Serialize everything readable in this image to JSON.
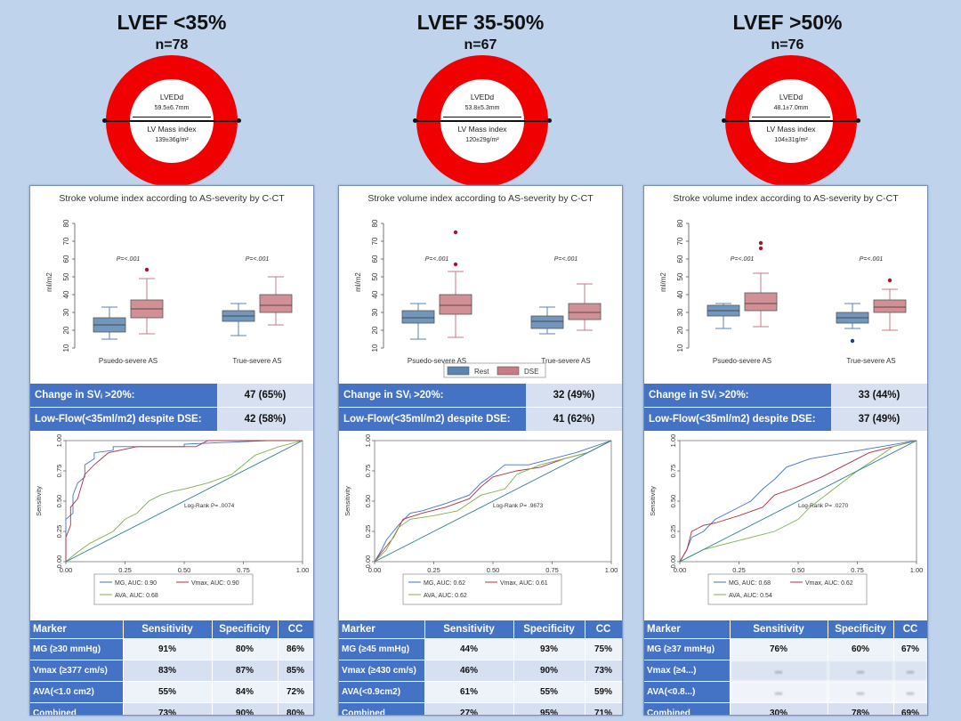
{
  "groups": [
    {
      "title": "LVEF <35%",
      "n": "n=78",
      "lvedd_label": "LVEDd",
      "lvedd_value": "59.5±6.7mm",
      "lvmass_label": "LV Mass index",
      "lvmass_value": "139±36g/m²",
      "summary": [
        {
          "label": "Change in SVᵢ >20%:",
          "value": "47 (65%)"
        },
        {
          "label": "Low-Flow(<35ml/m2) despite DSE:",
          "value": "42 (58%)"
        }
      ],
      "table": {
        "headers": [
          "Marker",
          "Sensitivity",
          "Specificity",
          "CC"
        ],
        "rows": [
          [
            "MG (≥30 mmHg)",
            "91%",
            "80%",
            "86%"
          ],
          [
            "Vmax (≥377 cm/s)",
            "83%",
            "87%",
            "85%"
          ],
          [
            "AVA(<1.0 cm2)",
            "55%",
            "84%",
            "72%"
          ],
          [
            "Combined",
            "73%",
            "90%",
            "80%"
          ]
        ]
      }
    },
    {
      "title": "LVEF 35-50%",
      "n": "n=67",
      "lvedd_label": "LVEDd",
      "lvedd_value": "53.8±5.3mm",
      "lvmass_label": "LV Mass index",
      "lvmass_value": "120±29g/m²",
      "summary": [
        {
          "label": "Change in SVᵢ >20%:",
          "value": "32 (49%)"
        },
        {
          "label": "Low-Flow(<35ml/m2) despite DSE:",
          "value": "41 (62%)"
        }
      ],
      "table": {
        "headers": [
          "Marker",
          "Sensitivity",
          "Specificity",
          "CC"
        ],
        "rows": [
          [
            "MG (≥45 mmHg)",
            "44%",
            "93%",
            "75%"
          ],
          [
            "Vmax (≥430 cm/s)",
            "46%",
            "90%",
            "73%"
          ],
          [
            "AVA(<0.9cm2)",
            "61%",
            "55%",
            "59%"
          ],
          [
            "Combined",
            "27%",
            "95%",
            "71%"
          ]
        ]
      }
    },
    {
      "title": "LVEF >50%",
      "n": "n=76",
      "lvedd_label": "LVEDd",
      "lvedd_value": "48.1±7.0mm",
      "lvmass_label": "LV Mass index",
      "lvmass_value": "104±31g/m²",
      "summary": [
        {
          "label": "Change in SVᵢ >20%:",
          "value": "33 (44%)"
        },
        {
          "label": "Low-Flow(<35ml/m2) despite DSE:",
          "value": "37 (49%)"
        }
      ],
      "table": {
        "headers": [
          "Marker",
          "Sensitivity",
          "Specificity",
          "CC"
        ],
        "rows": [
          [
            "MG (≥37 mmHg)",
            "76%",
            "60%",
            "67%"
          ],
          [
            "Vmax (≥4...)",
            "...",
            "...",
            "..."
          ],
          [
            "AVA(<0.8...)",
            "...",
            "...",
            "..."
          ],
          [
            "Combined",
            "30%",
            "78%",
            "69%"
          ]
        ]
      }
    }
  ],
  "colors": {
    "rest": "#5b84b1",
    "dse": "#c97b84",
    "ring": "#f00000",
    "header_blue": "#4472c4"
  },
  "chart_data": [
    {
      "type": "box",
      "title": "Stroke volume index according to AS-severity by C-CT",
      "ylabel": "ml/m2",
      "ylim": [
        10,
        85
      ],
      "yticks": [
        10,
        20,
        30,
        40,
        50,
        60,
        70,
        80
      ],
      "categories": [
        "Psuedo-severe AS",
        "True-severe AS"
      ],
      "pvalues": [
        "P=<.001",
        "P=<.001"
      ],
      "legend": [],
      "series": [
        {
          "name": "Rest",
          "boxes": [
            {
              "min": 15,
              "q1": 19,
              "median": 23,
              "q3": 27,
              "max": 33,
              "outliers": []
            },
            {
              "min": 17,
              "q1": 25,
              "median": 28,
              "q3": 31,
              "max": 35,
              "outliers": []
            }
          ]
        },
        {
          "name": "DSE",
          "boxes": [
            {
              "min": 18,
              "q1": 27,
              "median": 32,
              "q3": 37,
              "max": 49,
              "outliers": [
                54
              ]
            },
            {
              "min": 23,
              "q1": 30,
              "median": 34,
              "q3": 40,
              "max": 50,
              "outliers": []
            }
          ]
        }
      ]
    },
    {
      "type": "box",
      "title": "Stroke volume index according to AS-severity by C-CT",
      "ylabel": "ml/m2",
      "ylim": [
        10,
        85
      ],
      "yticks": [
        10,
        20,
        30,
        40,
        50,
        60,
        70,
        80
      ],
      "categories": [
        "Psuedo-severe AS",
        "True-severe AS"
      ],
      "pvalues": [
        "P=<.001",
        "P=<.001"
      ],
      "legend": [
        "Rest",
        "DSE"
      ],
      "series": [
        {
          "name": "Rest",
          "boxes": [
            {
              "min": 15,
              "q1": 24,
              "median": 27,
              "q3": 31,
              "max": 35,
              "outliers": []
            },
            {
              "min": 18,
              "q1": 21,
              "median": 25,
              "q3": 28,
              "max": 33,
              "outliers": []
            }
          ]
        },
        {
          "name": "DSE",
          "boxes": [
            {
              "min": 16,
              "q1": 29,
              "median": 34,
              "q3": 40,
              "max": 53,
              "outliers": [
                57,
                75
              ]
            },
            {
              "min": 20,
              "q1": 26,
              "median": 30,
              "q3": 35,
              "max": 46,
              "outliers": []
            }
          ]
        }
      ]
    },
    {
      "type": "box",
      "title": "Stroke volume index according to AS-severity by C-CT",
      "ylabel": "ml/m2",
      "ylim": [
        10,
        85
      ],
      "yticks": [
        10,
        20,
        30,
        40,
        50,
        60,
        70,
        80
      ],
      "categories": [
        "Psuedo-severe AS",
        "True-severe AS"
      ],
      "pvalues": [
        "P=<.001",
        "P=<.001"
      ],
      "legend": [],
      "series": [
        {
          "name": "Rest",
          "boxes": [
            {
              "min": 21,
              "q1": 28,
              "median": 31,
              "q3": 34,
              "max": 35,
              "outliers": []
            },
            {
              "min": 21,
              "q1": 24,
              "median": 27,
              "q3": 30,
              "max": 35,
              "outliers": [
                14
              ]
            }
          ]
        },
        {
          "name": "DSE",
          "boxes": [
            {
              "min": 22,
              "q1": 31,
              "median": 35,
              "q3": 41,
              "max": 52,
              "outliers": [
                66,
                69
              ]
            },
            {
              "min": 20,
              "q1": 30,
              "median": 33,
              "q3": 37,
              "max": 43,
              "outliers": [
                48
              ]
            }
          ]
        }
      ]
    },
    {
      "type": "line",
      "xlabel": "1-specificity",
      "ylabel": "Sensitivity",
      "xlim": [
        0,
        1
      ],
      "ylim": [
        0,
        1
      ],
      "ticks": [
        "0.00",
        "0.25",
        "0.50",
        "0.75",
        "1.00"
      ],
      "annotation": "Log-Rank P= .0074",
      "legend": [
        "MG, AUC: 0.90",
        "Vmax, AUC: 0.90",
        "AVA, AUC: 0.68"
      ],
      "series": [
        {
          "name": "MG",
          "color": "#4472c4",
          "points": [
            [
              0,
              0
            ],
            [
              0,
              0.35
            ],
            [
              0.03,
              0.4
            ],
            [
              0.03,
              0.55
            ],
            [
              0.05,
              0.65
            ],
            [
              0.08,
              0.7
            ],
            [
              0.08,
              0.8
            ],
            [
              0.12,
              0.85
            ],
            [
              0.12,
              0.9
            ],
            [
              0.2,
              0.92
            ],
            [
              0.2,
              0.95
            ],
            [
              0.5,
              0.95
            ],
            [
              0.5,
              0.97
            ],
            [
              0.85,
              1
            ],
            [
              1,
              1
            ]
          ]
        },
        {
          "name": "Vmax",
          "color": "#b03040",
          "points": [
            [
              0,
              0
            ],
            [
              0,
              0.2
            ],
            [
              0.02,
              0.3
            ],
            [
              0.02,
              0.45
            ],
            [
              0.05,
              0.52
            ],
            [
              0.08,
              0.72
            ],
            [
              0.12,
              0.8
            ],
            [
              0.15,
              0.85
            ],
            [
              0.18,
              0.9
            ],
            [
              0.3,
              0.95
            ],
            [
              0.55,
              0.95
            ],
            [
              0.6,
              1
            ],
            [
              1,
              1
            ]
          ]
        },
        {
          "name": "AVA",
          "color": "#7fb04b",
          "points": [
            [
              0,
              0
            ],
            [
              0.05,
              0.08
            ],
            [
              0.1,
              0.15
            ],
            [
              0.15,
              0.2
            ],
            [
              0.2,
              0.25
            ],
            [
              0.25,
              0.35
            ],
            [
              0.3,
              0.4
            ],
            [
              0.35,
              0.5
            ],
            [
              0.4,
              0.55
            ],
            [
              0.45,
              0.58
            ],
            [
              0.5,
              0.6
            ],
            [
              0.6,
              0.65
            ],
            [
              0.7,
              0.72
            ],
            [
              0.8,
              0.88
            ],
            [
              0.9,
              0.95
            ],
            [
              1,
              1
            ]
          ]
        },
        {
          "name": "ref",
          "color": "#2f7d8c",
          "points": [
            [
              0,
              0
            ],
            [
              1,
              1
            ]
          ]
        }
      ]
    },
    {
      "type": "line",
      "xlabel": "1-specificity",
      "ylabel": "Sensitivity",
      "xlim": [
        0,
        1
      ],
      "ylim": [
        0,
        1
      ],
      "ticks": [
        "0.00",
        "0.25",
        "0.50",
        "0.75",
        "1.00"
      ],
      "annotation": "Log-Rank P= .9673",
      "legend": [
        "MG, AUC: 0.62",
        "Vmax, AUC: 0.61",
        "AVA, AUC: 0.62"
      ],
      "series": [
        {
          "name": "MG",
          "color": "#4472c4",
          "points": [
            [
              0,
              0
            ],
            [
              0.03,
              0.1
            ],
            [
              0.05,
              0.18
            ],
            [
              0.1,
              0.3
            ],
            [
              0.15,
              0.4
            ],
            [
              0.2,
              0.42
            ],
            [
              0.3,
              0.48
            ],
            [
              0.4,
              0.55
            ],
            [
              0.45,
              0.65
            ],
            [
              0.5,
              0.72
            ],
            [
              0.55,
              0.8
            ],
            [
              0.65,
              0.8
            ],
            [
              0.75,
              0.85
            ],
            [
              0.85,
              0.9
            ],
            [
              1,
              1
            ]
          ]
        },
        {
          "name": "Vmax",
          "color": "#b03040",
          "points": [
            [
              0,
              0
            ],
            [
              0.03,
              0.08
            ],
            [
              0.08,
              0.2
            ],
            [
              0.12,
              0.35
            ],
            [
              0.2,
              0.4
            ],
            [
              0.3,
              0.45
            ],
            [
              0.4,
              0.52
            ],
            [
              0.45,
              0.62
            ],
            [
              0.5,
              0.7
            ],
            [
              0.6,
              0.75
            ],
            [
              0.7,
              0.78
            ],
            [
              0.8,
              0.85
            ],
            [
              0.9,
              0.9
            ],
            [
              1,
              1
            ]
          ]
        },
        {
          "name": "AVA",
          "color": "#7fb04b",
          "points": [
            [
              0,
              0
            ],
            [
              0.05,
              0.1
            ],
            [
              0.1,
              0.28
            ],
            [
              0.15,
              0.35
            ],
            [
              0.25,
              0.38
            ],
            [
              0.35,
              0.42
            ],
            [
              0.45,
              0.55
            ],
            [
              0.55,
              0.6
            ],
            [
              0.6,
              0.72
            ],
            [
              0.7,
              0.8
            ],
            [
              0.8,
              0.85
            ],
            [
              0.9,
              0.9
            ],
            [
              1,
              1
            ]
          ]
        },
        {
          "name": "ref",
          "color": "#2f7d8c",
          "points": [
            [
              0,
              0
            ],
            [
              1,
              1
            ]
          ]
        }
      ]
    },
    {
      "type": "line",
      "xlabel": "1-specificity",
      "ylabel": "Sensitivity",
      "xlim": [
        0,
        1
      ],
      "ylim": [
        0,
        1
      ],
      "ticks": [
        "0.00",
        "0.25",
        "0.50",
        "0.75",
        "1.00"
      ],
      "annotation": "Log-Rank P= .0270",
      "legend": [
        "MG, AUC: 0.68",
        "Vmax, AUC: 0.62",
        "AVA, AUC: 0.54"
      ],
      "series": [
        {
          "name": "MG",
          "color": "#4472c4",
          "points": [
            [
              0,
              0
            ],
            [
              0.03,
              0.1
            ],
            [
              0.05,
              0.2
            ],
            [
              0.1,
              0.25
            ],
            [
              0.15,
              0.35
            ],
            [
              0.2,
              0.4
            ],
            [
              0.3,
              0.5
            ],
            [
              0.35,
              0.6
            ],
            [
              0.4,
              0.68
            ],
            [
              0.45,
              0.78
            ],
            [
              0.55,
              0.85
            ],
            [
              0.7,
              0.9
            ],
            [
              0.85,
              0.95
            ],
            [
              1,
              1
            ]
          ]
        },
        {
          "name": "Vmax",
          "color": "#b03040",
          "points": [
            [
              0,
              0
            ],
            [
              0.03,
              0.1
            ],
            [
              0.05,
              0.25
            ],
            [
              0.1,
              0.3
            ],
            [
              0.15,
              0.32
            ],
            [
              0.25,
              0.38
            ],
            [
              0.35,
              0.45
            ],
            [
              0.4,
              0.55
            ],
            [
              0.5,
              0.62
            ],
            [
              0.6,
              0.7
            ],
            [
              0.7,
              0.8
            ],
            [
              0.8,
              0.9
            ],
            [
              0.9,
              0.95
            ],
            [
              1,
              1
            ]
          ]
        },
        {
          "name": "AVA",
          "color": "#7fb04b",
          "points": [
            [
              0,
              0
            ],
            [
              0.05,
              0.05
            ],
            [
              0.1,
              0.1
            ],
            [
              0.2,
              0.15
            ],
            [
              0.3,
              0.2
            ],
            [
              0.4,
              0.25
            ],
            [
              0.5,
              0.35
            ],
            [
              0.55,
              0.45
            ],
            [
              0.65,
              0.6
            ],
            [
              0.75,
              0.75
            ],
            [
              0.85,
              0.88
            ],
            [
              0.9,
              0.95
            ],
            [
              1,
              1
            ]
          ]
        },
        {
          "name": "ref",
          "color": "#2f7d8c",
          "points": [
            [
              0,
              0
            ],
            [
              1,
              1
            ]
          ]
        }
      ]
    }
  ]
}
